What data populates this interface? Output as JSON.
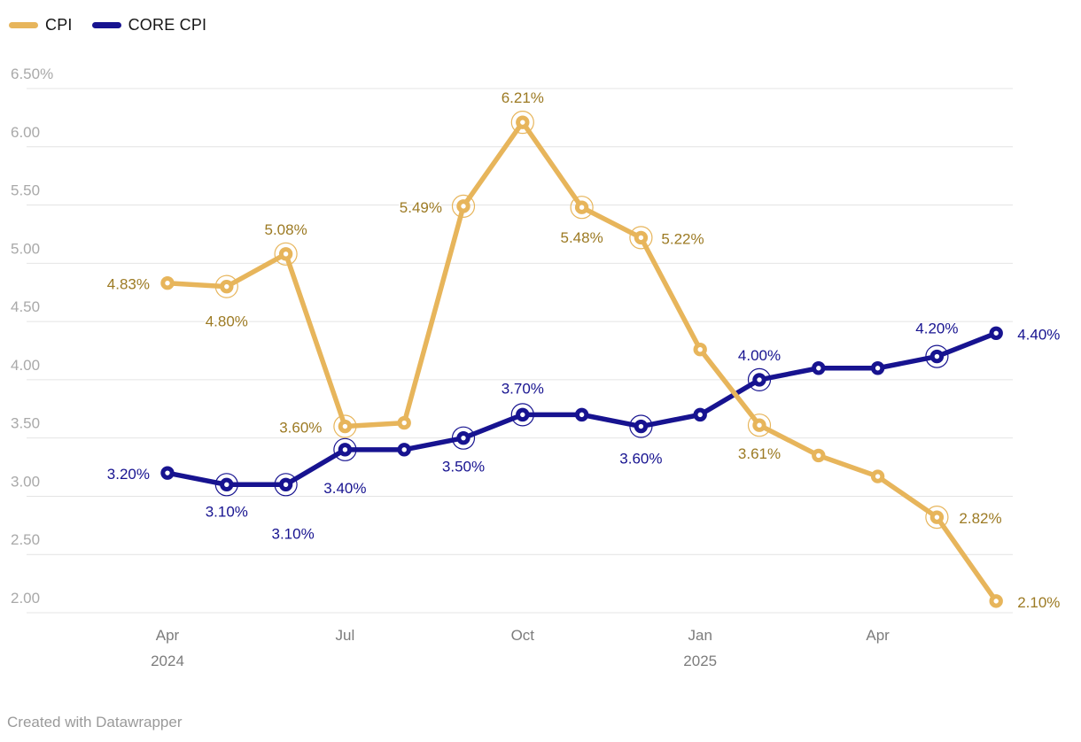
{
  "legend": {
    "items": [
      {
        "label": "CPI",
        "color": "#E7B55B"
      },
      {
        "label": "CORE CPI",
        "color": "#171390"
      }
    ]
  },
  "chart_data": {
    "type": "line",
    "x": [
      "Apr 2024",
      "May 2024",
      "Jun 2024",
      "Jul 2024",
      "Aug 2024",
      "Sep 2024",
      "Oct 2024",
      "Nov 2024",
      "Dec 2024",
      "Jan 2025",
      "Feb 2025",
      "Mar 2025",
      "Apr 2025",
      "May 2025",
      "Jun 2025"
    ],
    "x_ticks": [
      {
        "index": 0,
        "label": "Apr",
        "sublabel": "2024"
      },
      {
        "index": 3,
        "label": "Jul"
      },
      {
        "index": 6,
        "label": "Oct"
      },
      {
        "index": 9,
        "label": "Jan",
        "sublabel": "2025"
      },
      {
        "index": 12,
        "label": "Apr"
      }
    ],
    "y_ticks": [
      {
        "value": 6.5,
        "label": "6.50%"
      },
      {
        "value": 6.0,
        "label": "6.00"
      },
      {
        "value": 5.5,
        "label": "5.50"
      },
      {
        "value": 5.0,
        "label": "5.00"
      },
      {
        "value": 4.5,
        "label": "4.50"
      },
      {
        "value": 4.0,
        "label": "4.00"
      },
      {
        "value": 3.5,
        "label": "3.50"
      },
      {
        "value": 3.0,
        "label": "3.00"
      },
      {
        "value": 2.5,
        "label": "2.50"
      },
      {
        "value": 2.0,
        "label": "2.00"
      }
    ],
    "ylim": [
      2.0,
      6.5
    ],
    "grid": true,
    "legend_position": "top-left",
    "series": [
      {
        "name": "CPI",
        "color": "#E7B55B",
        "label_color": "#9C7A23",
        "values": [
          4.83,
          4.8,
          5.08,
          3.6,
          3.63,
          5.49,
          6.21,
          5.48,
          5.22,
          4.26,
          3.61,
          3.35,
          3.17,
          2.82,
          2.1
        ],
        "points": [
          {
            "ring": false,
            "label": {
              "text": "4.83%",
              "pos": "left",
              "dx": -20
            }
          },
          {
            "ring": true,
            "label": {
              "text": "4.80%",
              "pos": "below",
              "dy": 45
            }
          },
          {
            "ring": true,
            "label": {
              "text": "5.08%",
              "pos": "above"
            }
          },
          {
            "ring": true,
            "label": {
              "text": "3.60%",
              "pos": "left",
              "dx": -26
            }
          },
          {
            "ring": false
          },
          {
            "ring": true,
            "label": {
              "text": "5.49%",
              "pos": "left",
              "dx": -24
            }
          },
          {
            "ring": true,
            "label": {
              "text": "6.21%",
              "pos": "above"
            }
          },
          {
            "ring": true,
            "label": {
              "text": "5.48%",
              "pos": "below",
              "dy": 40
            }
          },
          {
            "ring": true,
            "label": {
              "text": "5.22%",
              "pos": "right"
            }
          },
          {
            "ring": false
          },
          {
            "ring": true,
            "label": {
              "text": "3.61%",
              "pos": "below"
            }
          },
          {
            "ring": false
          },
          {
            "ring": false
          },
          {
            "ring": true,
            "label": {
              "text": "2.82%",
              "pos": "right",
              "dx": 25
            }
          },
          {
            "ring": false,
            "label": {
              "text": "2.10%",
              "pos": "right",
              "dx": 24
            }
          }
        ]
      },
      {
        "name": "CORE CPI",
        "color": "#171390",
        "label_color": "#171390",
        "values": [
          3.2,
          3.1,
          3.1,
          3.4,
          3.4,
          3.5,
          3.7,
          3.7,
          3.6,
          3.7,
          4.0,
          4.1,
          4.1,
          4.2,
          4.4
        ],
        "points": [
          {
            "ring": false,
            "label": {
              "text": "3.20%",
              "pos": "left",
              "dx": -20
            }
          },
          {
            "ring": true,
            "label": {
              "text": "3.10%",
              "pos": "below",
              "dy": 36
            }
          },
          {
            "ring": true,
            "label": {
              "text": "3.10%",
              "pos": "below",
              "dx": 8,
              "dy": 61
            }
          },
          {
            "ring": true,
            "label": {
              "text": "3.40%",
              "pos": "below",
              "dy": 49
            }
          },
          {
            "ring": false
          },
          {
            "ring": true,
            "label": {
              "text": "3.50%",
              "pos": "below"
            }
          },
          {
            "ring": true,
            "label": {
              "text": "3.70%",
              "pos": "above",
              "dy": -24
            }
          },
          {
            "ring": false
          },
          {
            "ring": true,
            "label": {
              "text": "3.60%",
              "pos": "below",
              "dy": 42
            }
          },
          {
            "ring": false
          },
          {
            "ring": true,
            "label": {
              "text": "4.00%",
              "pos": "above"
            }
          },
          {
            "ring": false
          },
          {
            "ring": false
          },
          {
            "ring": true,
            "label": {
              "text": "4.20%",
              "pos": "above",
              "dy": -26
            }
          },
          {
            "ring": false,
            "label": {
              "text": "4.40%",
              "pos": "right",
              "dx": 24
            }
          }
        ]
      }
    ]
  },
  "footer": {
    "text": "Created with Datawrapper"
  }
}
